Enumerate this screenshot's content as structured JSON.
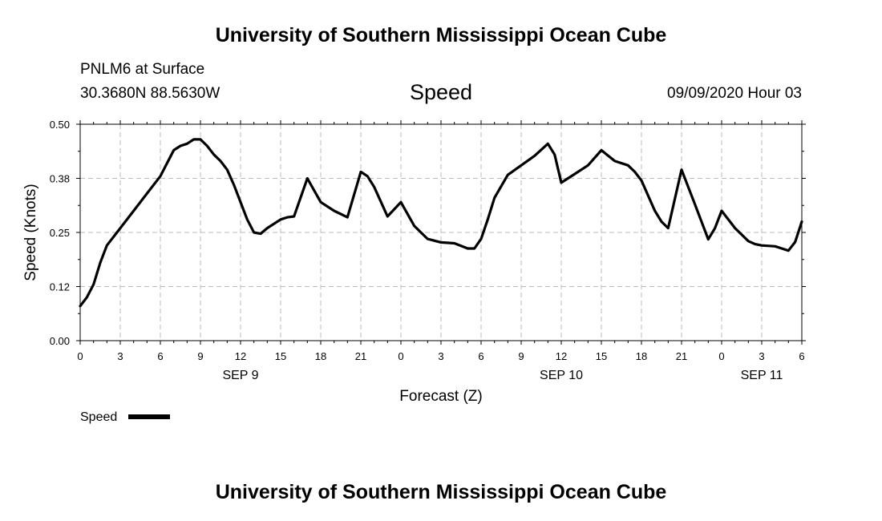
{
  "header": {
    "title": "University of Southern Mississippi Ocean Cube",
    "station": "PNLM6 at Surface",
    "coordinates": "30.3680N 88.5630W",
    "chart_title": "Speed",
    "datetime": "09/09/2020 Hour 03"
  },
  "footer": {
    "title": "University of Southern Mississippi Ocean Cube"
  },
  "chart_data": {
    "type": "line",
    "title": "Speed",
    "xlabel": "Forecast (Z)",
    "ylabel": "Speed (Knots)",
    "ylim": [
      0,
      0.5
    ],
    "xlim": [
      0,
      54
    ],
    "y_ticks": [
      "0.00",
      "0.12",
      "0.25",
      "0.38",
      "0.50"
    ],
    "x_ticks": [
      "0",
      "3",
      "6",
      "9",
      "12",
      "15",
      "18",
      "21",
      "0",
      "3",
      "6",
      "9",
      "12",
      "15",
      "18",
      "21",
      "0",
      "3",
      "6"
    ],
    "x_tick_hours": [
      0,
      3,
      6,
      9,
      12,
      15,
      18,
      21,
      24,
      27,
      30,
      33,
      36,
      39,
      42,
      45,
      48,
      51,
      54
    ],
    "date_labels": [
      {
        "hour": 12,
        "label": "SEP 9"
      },
      {
        "hour": 36,
        "label": "SEP 10"
      },
      {
        "hour": 51,
        "label": "SEP 11"
      }
    ],
    "grid": true,
    "legend": "bottom-left",
    "series": [
      {
        "name": "Speed",
        "color": "#000000",
        "x": [
          0,
          0.5,
          1,
          1.5,
          2,
          3,
          4,
          5,
          6,
          6.5,
          7,
          7.5,
          8,
          8.5,
          9,
          9.5,
          10,
          10.5,
          11,
          11.5,
          12,
          12.5,
          13,
          13.5,
          14,
          15,
          15.5,
          16,
          17,
          18,
          19,
          20,
          21,
          21.5,
          22,
          23,
          24,
          25,
          26,
          27,
          28,
          29,
          29.5,
          30,
          30.5,
          31,
          32,
          33,
          34,
          35,
          35.5,
          36,
          37,
          38,
          39,
          40,
          41,
          41.5,
          42,
          43,
          43.5,
          44,
          45,
          46,
          47,
          47.5,
          48,
          49,
          50,
          50.5,
          51,
          52,
          52.5,
          53,
          53.5,
          54
        ],
        "y": [
          0.08,
          0.1,
          0.13,
          0.18,
          0.22,
          0.26,
          0.3,
          0.34,
          0.38,
          0.41,
          0.44,
          0.45,
          0.455,
          0.465,
          0.465,
          0.45,
          0.43,
          0.415,
          0.395,
          0.36,
          0.32,
          0.28,
          0.25,
          0.247,
          0.26,
          0.28,
          0.285,
          0.287,
          0.375,
          0.32,
          0.3,
          0.285,
          0.39,
          0.38,
          0.355,
          0.287,
          0.32,
          0.265,
          0.235,
          0.227,
          0.225,
          0.213,
          0.213,
          0.235,
          0.28,
          0.33,
          0.383,
          0.405,
          0.427,
          0.455,
          0.43,
          0.365,
          0.385,
          0.405,
          0.44,
          0.415,
          0.405,
          0.39,
          0.37,
          0.3,
          0.275,
          0.26,
          0.395,
          0.315,
          0.234,
          0.26,
          0.3,
          0.26,
          0.23,
          0.223,
          0.22,
          0.218,
          0.213,
          0.208,
          0.228,
          0.275
        ]
      }
    ]
  }
}
